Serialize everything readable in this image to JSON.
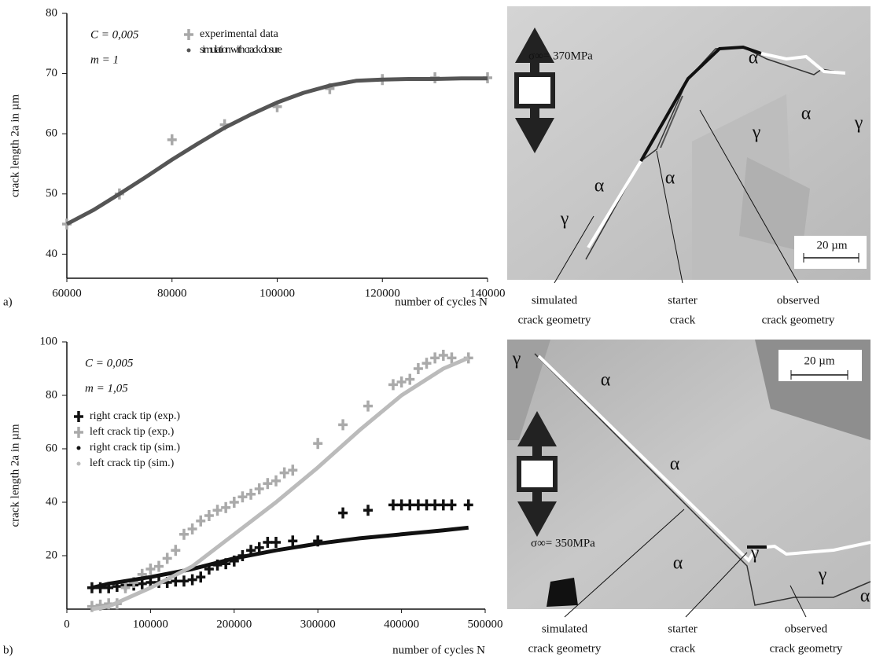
{
  "chart_data": [
    {
      "type": "scatter",
      "panel": "a)",
      "xlabel": "number of cycles N",
      "ylabel": "crack length 2a in µm",
      "annotations": [
        "C = 0,005",
        "m = 1"
      ],
      "xlim": [
        60000,
        140000
      ],
      "xticks": [
        60000,
        80000,
        100000,
        120000,
        140000
      ],
      "ylim": [
        36,
        80
      ],
      "yticks": [
        40,
        50,
        60,
        70,
        80
      ],
      "series": [
        {
          "name": "experimental data",
          "color": "#a8a8a8",
          "marker": "plus",
          "x": [
            60000,
            70000,
            80000,
            90000,
            100000,
            110000,
            120000,
            130000,
            140000
          ],
          "values": [
            45,
            50,
            59,
            61.5,
            64.5,
            67.5,
            69,
            69.3,
            69.3
          ]
        },
        {
          "name": "simulation with crack closure",
          "color": "#555555",
          "marker": "dot",
          "x": [
            60000,
            65000,
            70000,
            75000,
            80000,
            85000,
            90000,
            95000,
            100000,
            105000,
            110000,
            115000,
            120000,
            125000,
            130000,
            135000,
            140000
          ],
          "values": [
            45,
            47.3,
            50,
            52.8,
            55.7,
            58.4,
            61,
            63.2,
            65.2,
            66.8,
            68,
            68.8,
            69,
            69.1,
            69.1,
            69.2,
            69.2
          ]
        }
      ]
    },
    {
      "type": "scatter",
      "panel": "b)",
      "xlabel": "number of cycles N",
      "ylabel": "crack length 2a in µm",
      "annotations": [
        "C = 0,005",
        "m = 1,05"
      ],
      "xlim": [
        0,
        500000
      ],
      "xticks": [
        0,
        100000,
        200000,
        300000,
        400000,
        500000
      ],
      "ylim": [
        0,
        100
      ],
      "yticks": [
        20,
        40,
        60,
        80,
        100
      ],
      "series": [
        {
          "name": "right crack tip (exp.)",
          "color": "#111111",
          "marker": "plus",
          "x": [
            30000,
            40000,
            50000,
            60000,
            70000,
            80000,
            90000,
            100000,
            110000,
            120000,
            130000,
            140000,
            150000,
            160000,
            170000,
            180000,
            190000,
            200000,
            210000,
            220000,
            230000,
            240000,
            250000,
            270000,
            300000,
            330000,
            360000,
            390000,
            400000,
            410000,
            420000,
            430000,
            440000,
            450000,
            460000,
            480000
          ],
          "values": [
            8,
            8,
            8,
            8.5,
            9,
            9,
            9.5,
            10,
            10,
            10,
            10.5,
            10.5,
            11,
            12,
            15,
            16.5,
            17,
            18,
            20,
            22,
            23,
            25,
            25,
            25.5,
            25.5,
            36,
            37,
            39,
            39,
            39,
            39,
            39,
            39,
            39,
            39,
            39
          ]
        },
        {
          "name": "left crack tip (exp.)",
          "color": "#aaaaaa",
          "marker": "plus",
          "x": [
            30000,
            40000,
            50000,
            60000,
            70000,
            80000,
            90000,
            100000,
            110000,
            120000,
            130000,
            140000,
            150000,
            160000,
            170000,
            180000,
            190000,
            200000,
            210000,
            220000,
            230000,
            240000,
            250000,
            260000,
            270000,
            300000,
            330000,
            360000,
            390000,
            400000,
            410000,
            420000,
            430000,
            440000,
            450000,
            460000,
            480000
          ],
          "values": [
            1,
            1.5,
            2,
            2,
            8,
            10,
            13,
            15,
            16,
            19,
            22,
            28,
            30,
            33,
            35,
            37,
            38,
            40,
            42,
            43,
            45,
            47,
            48,
            51,
            52,
            62,
            69,
            76,
            84,
            85,
            86,
            90,
            92,
            94,
            95,
            94,
            94
          ]
        },
        {
          "name": "right crack tip (sim.)",
          "color": "#111111",
          "marker": "dot",
          "x": [
            30000,
            50000,
            100000,
            150000,
            200000,
            250000,
            300000,
            350000,
            400000,
            450000,
            480000
          ],
          "values": [
            8,
            9.5,
            12,
            15,
            19,
            22,
            24.5,
            26.5,
            28,
            29.5,
            30.5
          ]
        },
        {
          "name": "left crack tip (sim.)",
          "color": "#bbbbbb",
          "marker": "dot",
          "x": [
            30000,
            50000,
            100000,
            150000,
            200000,
            250000,
            300000,
            350000,
            400000,
            450000,
            480000
          ],
          "values": [
            0,
            1,
            8,
            16,
            28,
            40,
            53,
            67,
            80,
            90,
            94
          ]
        }
      ]
    }
  ],
  "micrographs": [
    {
      "stress": "σ∞= 370MPa",
      "phases": [
        "α",
        "γ",
        "α",
        "γ",
        "α",
        "α",
        "γ"
      ],
      "scale": "20 µm",
      "labels": [
        [
          "simulated",
          "crack geometry"
        ],
        [
          "starter",
          "crack"
        ],
        [
          "observed",
          "crack geometry"
        ]
      ]
    },
    {
      "stress": "σ∞= 350MPa",
      "phases": [
        "γ",
        "α",
        "α",
        "α",
        "γ",
        "γ",
        "α"
      ],
      "scale": "20 µm",
      "labels": [
        [
          "simulated",
          "crack geometry"
        ],
        [
          "starter",
          "crack"
        ],
        [
          "observed",
          "crack geometry"
        ]
      ]
    }
  ]
}
